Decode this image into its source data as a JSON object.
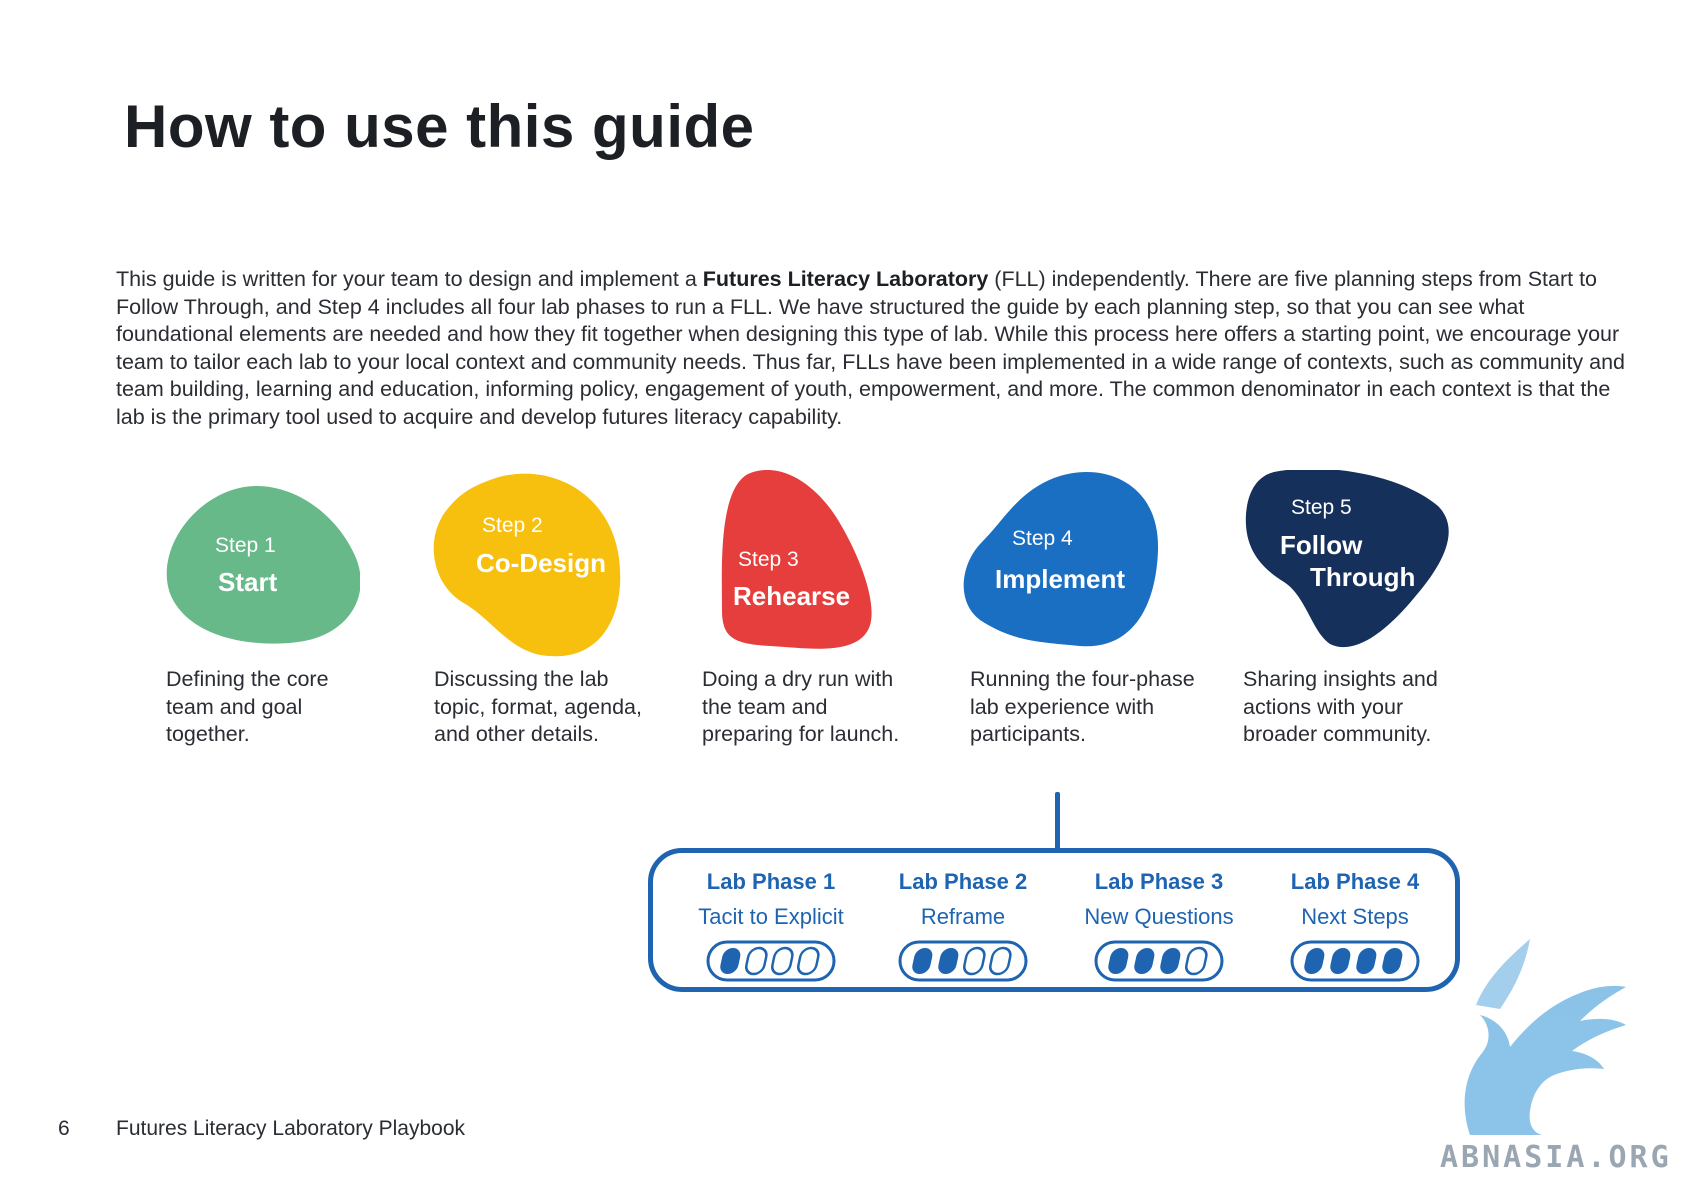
{
  "page": {
    "title": "How to use this guide",
    "page_number": "6",
    "footer_title": "Futures Literacy Laboratory Playbook"
  },
  "intro": {
    "before": "This guide is written for your team to design and implement a ",
    "bold": "Futures Literacy Laboratory",
    "after": " (FLL) independently. There are five planning steps from Start to Follow Through, and Step 4 includes all four lab phases to run a FLL. We have structured the guide by each planning step, so that you can see what foundational elements are needed and how they fit together when designing this type of lab. While this process here offers a starting point, we encourage your team to tailor each lab to your local context and community needs. Thus far, FLLs have been implemented in a wide range of contexts, such as community and team building, learning and education, informing policy, engagement of youth, empowerment, and more. The common denominator in each context is that the lab is the primary tool used to acquire and develop futures literacy capability."
  },
  "steps": [
    {
      "number": "Step 1",
      "name": "Start",
      "color": "#67b98a",
      "description": "Defining the core team and goal together."
    },
    {
      "number": "Step 2",
      "name": "Co-Design",
      "color": "#f7c00f",
      "description": "Discussing the lab topic, format, agenda, and other details."
    },
    {
      "number": "Step 3",
      "name": "Rehearse",
      "color": "#e63d3d",
      "description": "Doing a dry run with the team and preparing for launch."
    },
    {
      "number": "Step 4",
      "name": "Implement",
      "color": "#1a6fc2",
      "description": "Running the four-phase lab experience with participants."
    },
    {
      "number": "Step 5",
      "name_line1": "Follow",
      "name_line2": "Through",
      "color": "#15305a",
      "description": "Sharing insights and actions with your broader community."
    }
  ],
  "lab_phases": [
    {
      "title": "Lab Phase 1",
      "subtitle": "Tacit to Explicit",
      "filled": 1
    },
    {
      "title": "Lab Phase 2",
      "subtitle": "Reframe",
      "filled": 2
    },
    {
      "title": "Lab Phase 3",
      "subtitle": "New Questions",
      "filled": 3
    },
    {
      "title": "Lab Phase 4",
      "subtitle": "Next Steps",
      "filled": 4
    }
  ],
  "phase_color": "#1e64b0",
  "watermark": "ABNASIA.ORG"
}
